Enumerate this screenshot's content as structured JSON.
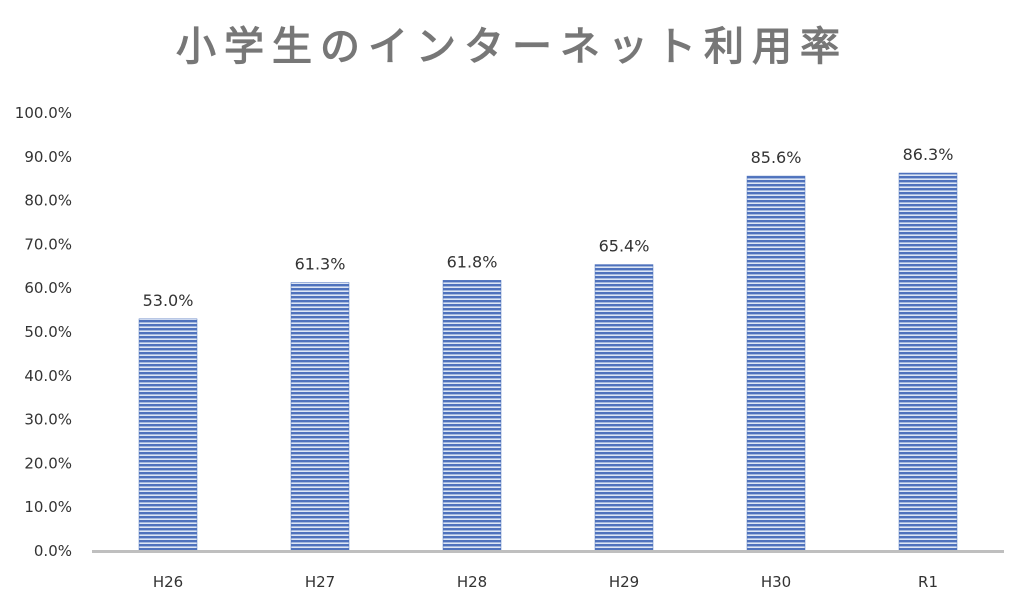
{
  "chart_data": {
    "type": "bar",
    "title": "小学生のインターネット利用率",
    "xlabel": "",
    "ylabel": "",
    "categories": [
      "H26",
      "H27",
      "H28",
      "H29",
      "H30",
      "R1"
    ],
    "values": [
      53.0,
      61.3,
      61.8,
      65.4,
      85.6,
      86.3
    ],
    "data_labels": [
      "53.0%",
      "61.3%",
      "61.8%",
      "65.4%",
      "85.6%",
      "86.3%"
    ],
    "ylim": [
      0,
      100
    ],
    "yticks": [
      0,
      10,
      20,
      30,
      40,
      50,
      60,
      70,
      80,
      90,
      100
    ],
    "ytick_labels": [
      "0.0%",
      "10.0%",
      "20.0%",
      "30.0%",
      "40.0%",
      "50.0%",
      "60.0%",
      "70.0%",
      "80.0%",
      "90.0%",
      "100.0%"
    ],
    "grid": false,
    "legend": "none",
    "colors": {
      "bar_stripe": "#4f72bd",
      "bar_light": "#dde6f5",
      "axis_line": "#bfbfbf",
      "title": "#777777",
      "text": "#333333"
    }
  }
}
